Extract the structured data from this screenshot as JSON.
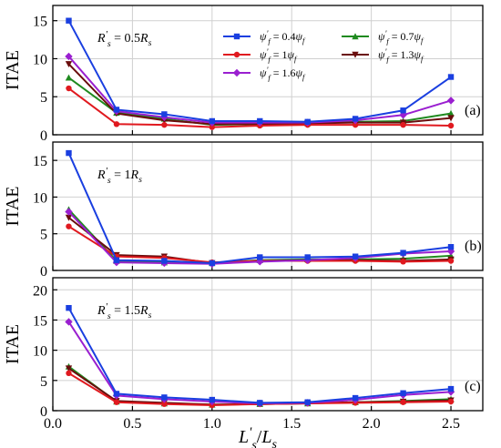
{
  "chart_data": {
    "type": "line",
    "xlabel": "L's/Ls",
    "x_ticks": [
      "0.0",
      "0.5",
      "1.0",
      "1.5",
      "2.0",
      "2.5"
    ],
    "x": [
      0.1,
      0.4,
      0.7,
      1.0,
      1.3,
      1.6,
      1.9,
      2.2,
      2.5
    ],
    "xlim": [
      0,
      2.7
    ],
    "grid": true,
    "series_styles": [
      {
        "color": "#1a3fe0",
        "marker": "square"
      },
      {
        "color": "#e0191f",
        "marker": "circle"
      },
      {
        "color": "#9a1fd0",
        "marker": "diamond"
      },
      {
        "color": "#1f8a1f",
        "marker": "triangle-up"
      },
      {
        "color": "#6a0d0d",
        "marker": "triangle-down"
      }
    ],
    "legend": {
      "placement": "top-right",
      "entries": [
        {
          "label": "ψ'f = 0.4ψf",
          "series": 0
        },
        {
          "label": "ψ'f = 0.7ψf",
          "series": 3
        },
        {
          "label": "ψ'f = 1ψf",
          "series": 1
        },
        {
          "label": "ψ'f = 1.3ψf",
          "series": 4
        },
        {
          "label": "ψ'f = 1.6ψf",
          "series": 2
        }
      ]
    },
    "panels": [
      {
        "tag": "(a)",
        "annotation": "R's = 0.5Rs",
        "ylabel": "ITAE",
        "ylim": [
          0,
          17
        ],
        "yticks": [
          "0",
          "5",
          "10",
          "15"
        ],
        "series": [
          {
            "values": [
              15.0,
              3.3,
              2.7,
              1.8,
              1.8,
              1.7,
              2.1,
              3.2,
              7.6
            ]
          },
          {
            "values": [
              6.1,
              1.4,
              1.3,
              1.0,
              1.2,
              1.3,
              1.3,
              1.3,
              1.2
            ]
          },
          {
            "values": [
              10.3,
              3.1,
              2.3,
              1.6,
              1.6,
              1.6,
              1.9,
              2.6,
              4.5
            ]
          },
          {
            "values": [
              7.5,
              2.9,
              2.1,
              1.3,
              1.4,
              1.5,
              1.7,
              1.8,
              2.8
            ]
          },
          {
            "values": [
              9.3,
              2.8,
              1.9,
              1.4,
              1.4,
              1.5,
              1.6,
              1.6,
              2.2
            ]
          }
        ]
      },
      {
        "tag": "(b)",
        "annotation": "R's = 1Rs",
        "ylabel": "ITAE",
        "ylim": [
          0,
          17.5
        ],
        "yticks": [
          "0",
          "5",
          "10",
          "15"
        ],
        "series": [
          {
            "values": [
              16.0,
              1.4,
              1.3,
              1.0,
              1.8,
              1.8,
              1.9,
              2.4,
              3.2
            ]
          },
          {
            "values": [
              6.0,
              1.9,
              1.7,
              1.1,
              1.3,
              1.3,
              1.3,
              1.2,
              1.3
            ]
          },
          {
            "values": [
              8.0,
              1.1,
              1.0,
              0.9,
              1.2,
              1.4,
              1.7,
              2.3,
              2.6
            ]
          },
          {
            "values": [
              8.3,
              1.3,
              1.1,
              1.0,
              1.4,
              1.5,
              1.5,
              1.6,
              2.0
            ]
          },
          {
            "values": [
              7.2,
              2.1,
              1.9,
              1.0,
              1.3,
              1.4,
              1.4,
              1.3,
              1.5
            ]
          }
        ]
      },
      {
        "tag": "(c)",
        "annotation": "R's = 1.5Rs",
        "ylabel": "ITAE",
        "ylim": [
          0,
          22
        ],
        "yticks": [
          "0",
          "5",
          "10",
          "15",
          "20"
        ],
        "series": [
          {
            "values": [
              17.0,
              2.8,
              2.2,
              1.8,
              1.3,
              1.4,
              2.1,
              2.9,
              3.6
            ]
          },
          {
            "values": [
              6.2,
              1.4,
              1.1,
              0.9,
              1.1,
              1.2,
              1.3,
              1.4,
              1.5
            ]
          },
          {
            "values": [
              14.7,
              2.5,
              1.9,
              1.5,
              1.2,
              1.3,
              1.8,
              2.6,
              3.1
            ]
          },
          {
            "values": [
              7.3,
              1.5,
              1.2,
              1.0,
              1.1,
              1.2,
              1.4,
              1.6,
              1.9
            ]
          },
          {
            "values": [
              7.0,
              1.6,
              1.3,
              1.0,
              1.1,
              1.2,
              1.4,
              1.5,
              1.7
            ]
          }
        ]
      }
    ]
  }
}
